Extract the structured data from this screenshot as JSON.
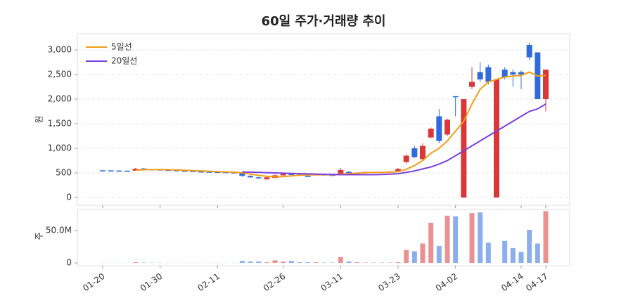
{
  "chart_data": {
    "type": "candlestick",
    "title": "60일 주가·거래량 추이",
    "y_label": "원",
    "volume_label": "주",
    "categories": [
      "01-20",
      null,
      null,
      null,
      null,
      null,
      null,
      "01-30",
      null,
      null,
      null,
      null,
      null,
      null,
      "02-11",
      null,
      null,
      null,
      null,
      null,
      null,
      null,
      "02-26",
      null,
      null,
      null,
      null,
      null,
      null,
      "03-11",
      null,
      null,
      null,
      null,
      null,
      null,
      "03-23",
      null,
      null,
      null,
      null,
      null,
      null,
      "04-02",
      null,
      null,
      null,
      null,
      null,
      null,
      null,
      "04-14",
      null,
      null,
      "04-17"
    ],
    "open": [
      552,
      552,
      548,
      545,
      545,
      590,
      575,
      570,
      560,
      555,
      545,
      540,
      530,
      525,
      520,
      515,
      510,
      500,
      440,
      410,
      370,
      400,
      450,
      480,
      470,
      440,
      460,
      470,
      460,
      480,
      520,
      500,
      505,
      520,
      515,
      520,
      540,
      720,
      1000,
      780,
      1220,
      1650,
      1280,
      2060,
      0,
      2250,
      2550,
      2650,
      0,
      2600,
      2550,
      2550,
      3100,
      2950,
      2000
    ],
    "high": [
      555,
      555,
      552,
      548,
      600,
      600,
      578,
      572,
      562,
      558,
      548,
      542,
      532,
      528,
      522,
      518,
      512,
      510,
      450,
      420,
      420,
      470,
      490,
      490,
      478,
      450,
      475,
      478,
      468,
      600,
      540,
      510,
      525,
      525,
      522,
      535,
      600,
      880,
      1050,
      1100,
      1420,
      1800,
      1600,
      2060,
      2000,
      2650,
      2750,
      2700,
      2400,
      2650,
      2600,
      2580,
      3150,
      2950,
      2600
    ],
    "low": [
      548,
      546,
      543,
      538,
      540,
      570,
      568,
      558,
      553,
      543,
      538,
      528,
      523,
      518,
      513,
      508,
      503,
      420,
      400,
      380,
      360,
      390,
      445,
      465,
      460,
      415,
      455,
      455,
      445,
      470,
      495,
      495,
      500,
      510,
      510,
      515,
      530,
      690,
      800,
      750,
      1200,
      1100,
      1250,
      1650,
      0,
      2200,
      2350,
      2300,
      0,
      2400,
      2250,
      2200,
      2800,
      2000,
      1750
    ],
    "close": [
      548,
      548,
      545,
      540,
      585,
      575,
      570,
      560,
      555,
      545,
      540,
      530,
      525,
      520,
      515,
      510,
      505,
      440,
      410,
      390,
      410,
      450,
      480,
      470,
      465,
      420,
      470,
      460,
      450,
      560,
      500,
      505,
      520,
      515,
      520,
      530,
      580,
      850,
      820,
      1050,
      1400,
      1150,
      1580,
      2040,
      2000,
      2350,
      2400,
      2350,
      2400,
      2450,
      2500,
      2500,
      2850,
      2000,
      2600
    ],
    "up_color": "#d93838",
    "down_color": "#2f6bdc",
    "ylim": [
      -157,
      3329
    ],
    "yticks": [
      0,
      500,
      {
        "value": 1000,
        "label": "1,000"
      },
      {
        "value": 1500,
        "label": "1,500"
      },
      {
        "value": 2000,
        "label": "2,000"
      },
      {
        "value": 2500,
        "label": "2,500"
      },
      {
        "value": 3000,
        "label": "3,000"
      }
    ],
    "grid": true,
    "legend": "upper left",
    "series": [
      {
        "name": "5일선",
        "color": "#f29d14",
        "values": [
          null,
          null,
          null,
          null,
          555,
          565,
          568,
          568,
          565,
          560,
          555,
          548,
          540,
          532,
          525,
          520,
          515,
          500,
          475,
          450,
          430,
          420,
          425,
          440,
          455,
          460,
          460,
          465,
          460,
          475,
          485,
          495,
          505,
          510,
          510,
          515,
          525,
          575,
          650,
          750,
          900,
          1000,
          1150,
          1350,
          1550,
          1900,
          2200,
          2350,
          2400,
          2450,
          2470,
          2480,
          2550,
          2470,
          2480
        ]
      },
      {
        "name": "20일선",
        "color": "#7b3fe0",
        "values": [
          null,
          null,
          null,
          null,
          null,
          null,
          null,
          null,
          null,
          null,
          null,
          null,
          null,
          null,
          null,
          null,
          null,
          520,
          515,
          510,
          505,
          500,
          495,
          490,
          485,
          480,
          475,
          470,
          468,
          465,
          465,
          465,
          465,
          465,
          468,
          475,
          485,
          510,
          540,
          580,
          620,
          680,
          750,
          850,
          950,
          1050,
          1150,
          1250,
          1350,
          1450,
          1550,
          1650,
          1750,
          1800,
          1900
        ]
      }
    ],
    "volume": {
      "values": [
        200000,
        200000,
        200000,
        200000,
        1000000,
        500000,
        300000,
        300000,
        200000,
        200000,
        200000,
        200000,
        200000,
        200000,
        200000,
        200000,
        200000,
        3000000,
        2000000,
        2000000,
        1000000,
        4000000,
        2000000,
        3000000,
        1000000,
        1000000,
        1000000,
        500000,
        500000,
        9000000,
        2000000,
        1000000,
        500000,
        500000,
        500000,
        500000,
        1000000,
        20000000,
        18000000,
        30000000,
        62000000,
        26000000,
        73000000,
        72000000,
        0,
        77000000,
        78000000,
        31000000,
        0,
        34000000,
        23000000,
        17000000,
        51000000,
        30000000,
        80000000
      ],
      "ylim": [
        -4300000,
        82600000
      ],
      "yticks": [
        0,
        {
          "value": 50000000,
          "label": "50.0M"
        }
      ]
    }
  }
}
